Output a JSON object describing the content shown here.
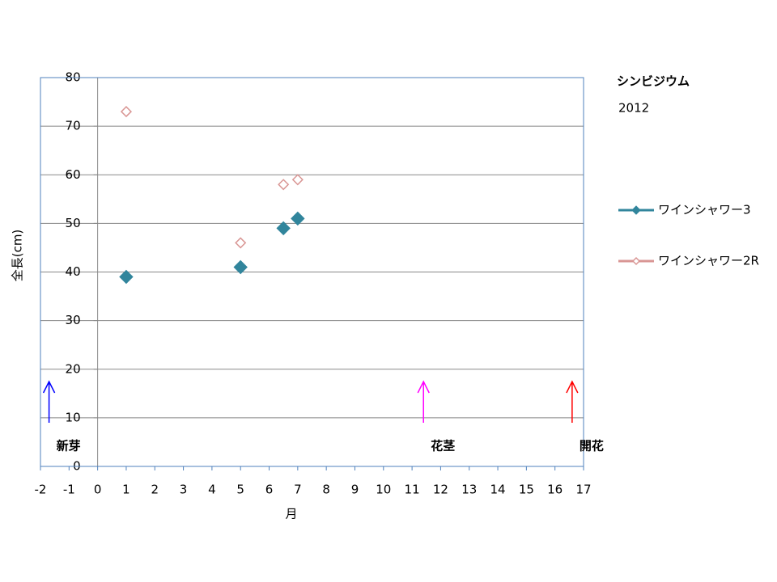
{
  "chart_data": {
    "type": "scatter",
    "title": "シンビジウム",
    "subtitle": "2012",
    "x_label": "月",
    "y_label": "全長(cm)",
    "xlim": [
      -2,
      17
    ],
    "xticks": [
      -2,
      -1,
      0,
      1,
      2,
      3,
      4,
      5,
      6,
      7,
      8,
      9,
      10,
      11,
      12,
      13,
      14,
      15,
      16,
      17
    ],
    "ylim": [
      0,
      80
    ],
    "yticks": [
      0,
      10,
      20,
      30,
      40,
      50,
      60,
      70,
      80
    ],
    "grid": true,
    "series": [
      {
        "name": "ワインシャワー3",
        "color": "#31859c",
        "marker": "filled",
        "x": [
          1,
          5,
          6.5,
          7
        ],
        "values": [
          39,
          41,
          49,
          51
        ]
      },
      {
        "name": "ワインシャワー2R",
        "color": "#d99694",
        "marker": "hollow",
        "x": [
          1,
          5,
          6.5,
          7
        ],
        "values": [
          73,
          46,
          58,
          59
        ]
      }
    ],
    "legend": "right",
    "annotations": [
      {
        "text": "新芽",
        "x": -1.7,
        "color": "#0000ff"
      },
      {
        "text": "花茎",
        "x": 11.4,
        "color": "#ff00ff"
      },
      {
        "text": "開花",
        "x": 16.6,
        "color": "#ff0000"
      }
    ]
  }
}
